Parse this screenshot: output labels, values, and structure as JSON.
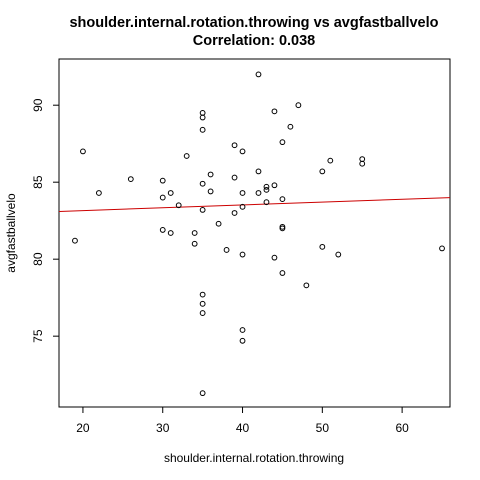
{
  "chart_data": {
    "type": "scatter",
    "title": "shoulder.internal.rotation.throwing vs avgfastballvelo",
    "subtitle": "Correlation: 0.038",
    "xlabel": "shoulder.internal.rotation.throwing",
    "ylabel": "avgfastballvelo",
    "xlim": [
      17,
      66
    ],
    "ylim": [
      70.4,
      93
    ],
    "x_ticks": [
      20,
      30,
      40,
      50,
      60
    ],
    "y_ticks": [
      75,
      80,
      85,
      90
    ],
    "grid": false,
    "legend": "none",
    "point_color": "#000000",
    "fit_line": {
      "x": [
        17,
        66
      ],
      "y": [
        83.1,
        84.0
      ],
      "color": "#cc0000"
    },
    "points": [
      {
        "x": 19,
        "y": 81.2
      },
      {
        "x": 20,
        "y": 87.0
      },
      {
        "x": 22,
        "y": 84.3
      },
      {
        "x": 26,
        "y": 85.2
      },
      {
        "x": 30,
        "y": 85.1
      },
      {
        "x": 30,
        "y": 84.0
      },
      {
        "x": 30,
        "y": 81.9
      },
      {
        "x": 31,
        "y": 84.3
      },
      {
        "x": 31,
        "y": 81.7
      },
      {
        "x": 32,
        "y": 83.5
      },
      {
        "x": 33,
        "y": 86.7
      },
      {
        "x": 34,
        "y": 81.7
      },
      {
        "x": 34,
        "y": 81.0
      },
      {
        "x": 35,
        "y": 89.5
      },
      {
        "x": 35,
        "y": 89.2
      },
      {
        "x": 35,
        "y": 88.4
      },
      {
        "x": 35,
        "y": 84.9
      },
      {
        "x": 35,
        "y": 83.2
      },
      {
        "x": 35,
        "y": 77.7
      },
      {
        "x": 35,
        "y": 77.1
      },
      {
        "x": 35,
        "y": 76.5
      },
      {
        "x": 35,
        "y": 71.3
      },
      {
        "x": 36,
        "y": 85.5
      },
      {
        "x": 36,
        "y": 84.4
      },
      {
        "x": 37,
        "y": 82.3
      },
      {
        "x": 38,
        "y": 80.6
      },
      {
        "x": 39,
        "y": 87.4
      },
      {
        "x": 39,
        "y": 85.3
      },
      {
        "x": 39,
        "y": 83.0
      },
      {
        "x": 40,
        "y": 87.0
      },
      {
        "x": 40,
        "y": 84.3
      },
      {
        "x": 40,
        "y": 83.4
      },
      {
        "x": 40,
        "y": 80.3
      },
      {
        "x": 40,
        "y": 75.4
      },
      {
        "x": 40,
        "y": 74.7
      },
      {
        "x": 42,
        "y": 92.0
      },
      {
        "x": 42,
        "y": 85.7
      },
      {
        "x": 42,
        "y": 84.3
      },
      {
        "x": 43,
        "y": 84.7
      },
      {
        "x": 43,
        "y": 84.5
      },
      {
        "x": 43,
        "y": 83.7
      },
      {
        "x": 44,
        "y": 89.6
      },
      {
        "x": 44,
        "y": 84.8
      },
      {
        "x": 44,
        "y": 80.1
      },
      {
        "x": 45,
        "y": 87.6
      },
      {
        "x": 45,
        "y": 83.9
      },
      {
        "x": 45,
        "y": 82.1
      },
      {
        "x": 45,
        "y": 82.0
      },
      {
        "x": 45,
        "y": 79.1
      },
      {
        "x": 46,
        "y": 88.6
      },
      {
        "x": 47,
        "y": 90.0
      },
      {
        "x": 48,
        "y": 78.3
      },
      {
        "x": 50,
        "y": 85.7
      },
      {
        "x": 50,
        "y": 80.8
      },
      {
        "x": 51,
        "y": 86.4
      },
      {
        "x": 52,
        "y": 80.3
      },
      {
        "x": 55,
        "y": 86.5
      },
      {
        "x": 55,
        "y": 86.2
      },
      {
        "x": 65,
        "y": 80.7
      }
    ]
  }
}
